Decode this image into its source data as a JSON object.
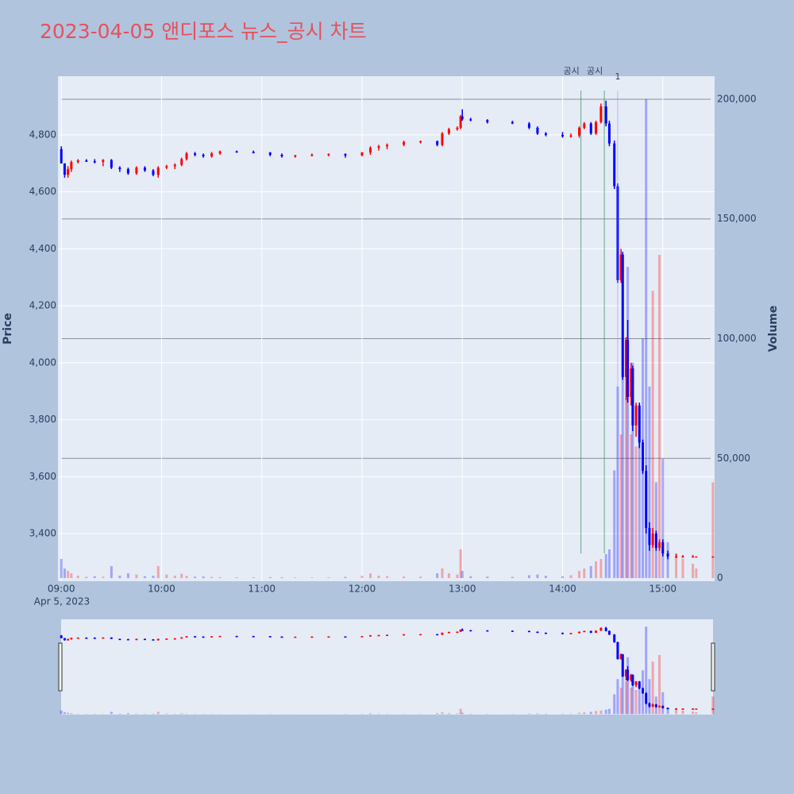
{
  "chart_data": {
    "type": "candlestick",
    "title": "2023-04-05 앤디포스 뉴스_공시 차트",
    "y_title": "Price",
    "y2_title": "Volume",
    "x_date_label": "Apr 5, 2023",
    "increasing_color": "#ff0000",
    "decreasing_color": "#0000ff",
    "title_color": "#e8505b",
    "annotation_color": "#2e8b57",
    "x": [
      "09:00",
      "09:02",
      "09:04",
      "09:06",
      "09:10",
      "09:15",
      "09:20",
      "09:25",
      "09:30",
      "09:35",
      "09:40",
      "09:45",
      "09:50",
      "09:55",
      "09:58",
      "10:03",
      "10:08",
      "10:12",
      "10:15",
      "10:20",
      "10:25",
      "10:30",
      "10:35",
      "10:45",
      "10:55",
      "11:05",
      "11:12",
      "11:20",
      "11:30",
      "11:40",
      "11:50",
      "12:00",
      "12:05",
      "12:10",
      "12:15",
      "12:25",
      "12:35",
      "12:45",
      "12:48",
      "12:52",
      "12:57",
      "12:59",
      "13:00",
      "13:05",
      "13:15",
      "13:30",
      "13:40",
      "13:45",
      "13:50",
      "14:00",
      "14:05",
      "14:10",
      "14:13",
      "14:17",
      "14:20",
      "14:23",
      "14:26",
      "14:28",
      "14:31",
      "14:33",
      "14:35",
      "14:36",
      "14:38",
      "14:39",
      "14:41",
      "14:42",
      "14:44",
      "14:46",
      "14:48",
      "14:50",
      "14:52",
      "14:54",
      "14:56",
      "14:58",
      "15:00",
      "15:03",
      "15:08",
      "15:12",
      "15:18",
      "15:20",
      "15:30"
    ],
    "open": [
      4750,
      4700,
      4660,
      4680,
      4705,
      4710,
      4708,
      4705,
      4712,
      4685,
      4680,
      4665,
      4685,
      4675,
      4660,
      4685,
      4690,
      4695,
      4715,
      4735,
      4730,
      4725,
      4735,
      4742,
      4740,
      4738,
      4730,
      4725,
      4728,
      4730,
      4733,
      4728,
      4738,
      4755,
      4760,
      4765,
      4775,
      4778,
      4765,
      4805,
      4820,
      4825,
      4865,
      4855,
      4852,
      4845,
      4840,
      4825,
      4805,
      4800,
      4795,
      4798,
      4825,
      4840,
      4805,
      4845,
      4900,
      4840,
      4770,
      4620,
      4290,
      4380,
      3950,
      4080,
      3880,
      3980,
      3780,
      3850,
      3720,
      3620,
      3420,
      3360,
      3400,
      3350,
      3370,
      3330,
      3320,
      3320,
      3320,
      3320,
      3320
    ],
    "high": [
      4760,
      4700,
      4690,
      4710,
      4715,
      4715,
      4715,
      4715,
      4715,
      4690,
      4685,
      4690,
      4690,
      4680,
      4690,
      4695,
      4700,
      4720,
      4740,
      4740,
      4735,
      4740,
      4745,
      4745,
      4745,
      4740,
      4735,
      4730,
      4735,
      4735,
      4735,
      4740,
      4760,
      4765,
      4770,
      4780,
      4780,
      4780,
      4810,
      4825,
      4830,
      4870,
      4890,
      4860,
      4855,
      4850,
      4845,
      4830,
      4810,
      4810,
      4805,
      4830,
      4845,
      4845,
      4850,
      4910,
      4920,
      4850,
      4780,
      4630,
      4400,
      4390,
      4090,
      4150,
      4000,
      3990,
      3860,
      3860,
      3730,
      3640,
      3440,
      3420,
      3410,
      3380,
      3380,
      3340,
      3330,
      3325,
      3325,
      3320,
      3320
    ],
    "low": [
      4700,
      4650,
      4650,
      4670,
      4700,
      4705,
      4700,
      4690,
      4680,
      4670,
      4660,
      4660,
      4670,
      4655,
      4650,
      4680,
      4680,
      4690,
      4710,
      4725,
      4720,
      4720,
      4730,
      4738,
      4735,
      4725,
      4720,
      4720,
      4725,
      4725,
      4720,
      4725,
      4730,
      4745,
      4750,
      4760,
      4770,
      4760,
      4760,
      4800,
      4815,
      4820,
      4850,
      4848,
      4840,
      4838,
      4820,
      4800,
      4795,
      4790,
      4790,
      4790,
      4820,
      4800,
      4800,
      4840,
      4830,
      4760,
      4610,
      4280,
      4280,
      3940,
      3870,
      3860,
      3850,
      3760,
      3740,
      3700,
      3610,
      3400,
      3340,
      3350,
      3340,
      3340,
      3320,
      3310,
      3315,
      3318,
      3318,
      3320,
      3320
    ],
    "close": [
      4700,
      4660,
      4680,
      4705,
      4710,
      4708,
      4705,
      4712,
      4685,
      4680,
      4665,
      4685,
      4675,
      4660,
      4685,
      4690,
      4695,
      4715,
      4735,
      4730,
      4725,
      4735,
      4742,
      4740,
      4738,
      4730,
      4725,
      4728,
      4730,
      4733,
      4728,
      4738,
      4755,
      4760,
      4765,
      4775,
      4778,
      4765,
      4805,
      4820,
      4825,
      4865,
      4855,
      4852,
      4845,
      4840,
      4825,
      4805,
      4800,
      4795,
      4798,
      4825,
      4840,
      4805,
      4845,
      4900,
      4840,
      4770,
      4620,
      4290,
      4380,
      3950,
      4080,
      3880,
      3980,
      3780,
      3850,
      3720,
      3620,
      3420,
      3360,
      3400,
      3350,
      3370,
      3330,
      3320,
      3320,
      3320,
      3320,
      3320,
      3320
    ],
    "volume": [
      8000,
      4000,
      3000,
      2000,
      1000,
      500,
      800,
      600,
      5000,
      1000,
      2000,
      1500,
      800,
      1000,
      5000,
      1500,
      1000,
      1800,
      900,
      600,
      700,
      500,
      400,
      300,
      300,
      400,
      300,
      300,
      300,
      300,
      500,
      1000,
      2000,
      1000,
      800,
      700,
      600,
      2000,
      4000,
      2000,
      1500,
      12000,
      3000,
      800,
      600,
      500,
      1200,
      1500,
      1000,
      800,
      1200,
      3000,
      4000,
      5000,
      7000,
      8000,
      10000,
      12000,
      45000,
      80000,
      60000,
      100000,
      75000,
      130000,
      60000,
      90000,
      55000,
      70000,
      100000,
      200000,
      80000,
      120000,
      40000,
      135000,
      50000,
      15000,
      10000,
      8000,
      6000,
      4000,
      40000
    ],
    "xlim": [
      "08:58",
      "15:31"
    ],
    "xticks": [
      "09:00",
      "10:00",
      "11:00",
      "12:00",
      "13:00",
      "14:00",
      "15:00"
    ],
    "ylim": [
      3233,
      5006
    ],
    "yticks": [
      {
        "value": 3400,
        "label": "3,400"
      },
      {
        "value": 3600,
        "label": "3,600"
      },
      {
        "value": 3800,
        "label": "3,800"
      },
      {
        "value": 4000,
        "label": "4,000"
      },
      {
        "value": 4200,
        "label": "4,200"
      },
      {
        "value": 4400,
        "label": "4,400"
      },
      {
        "value": 4600,
        "label": "4,600"
      },
      {
        "value": 4800,
        "label": "4,800"
      }
    ],
    "y2lim": [
      -1300,
      209600
    ],
    "y2ticks": [
      0,
      {
        "value": 50000,
        "label": "50,000"
      },
      {
        "value": 100000,
        "label": "100,000"
      },
      {
        "value": 150000,
        "label": "150,000"
      },
      {
        "value": 200000,
        "label": "200,000"
      }
    ],
    "annotations": [
      {
        "x": "14:11",
        "text": "공시"
      },
      {
        "x": "14:25",
        "text": "공시"
      },
      {
        "x": "14:33",
        "text": "1"
      }
    ]
  }
}
